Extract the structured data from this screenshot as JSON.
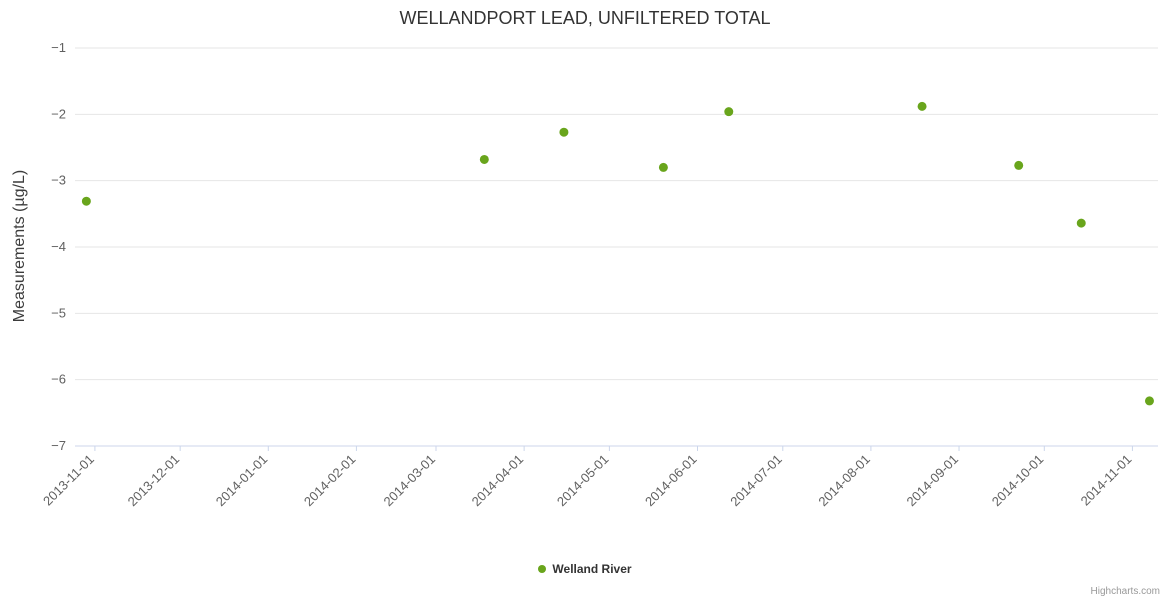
{
  "chart": {
    "title": "WELLANDPORT LEAD, UNFILTERED TOTAL",
    "credits": "Highcharts.com",
    "colors": {
      "series_green": "#69a51c",
      "gridline": "#e6e6e6",
      "axis_line": "#ccd6eb",
      "tick_label": "#606060",
      "title_text": "#333333"
    },
    "y_axis": {
      "title": "Measurements (µg/L)",
      "tick_labels": [
        "−1",
        "−2",
        "−3",
        "−4",
        "−5",
        "−6",
        "−7"
      ]
    },
    "x_axis": {
      "tick_labels": [
        "2013-11-01",
        "2013-12-01",
        "2014-01-01",
        "2014-02-01",
        "2014-03-01",
        "2014-04-01",
        "2014-05-01",
        "2014-06-01",
        "2014-07-01",
        "2014-08-01",
        "2014-09-01",
        "2014-10-01",
        "2014-11-01"
      ]
    },
    "legend": {
      "series_label": "Welland River"
    }
  },
  "chart_data": {
    "type": "scatter",
    "title": "WELLANDPORT LEAD, UNFILTERED TOTAL",
    "xlabel": "",
    "ylabel": "Measurements (µg/L)",
    "ylim": [
      -7,
      -1
    ],
    "y_ticks": [
      -1,
      -2,
      -3,
      -4,
      -5,
      -6,
      -7
    ],
    "x_range": [
      "2013-10-25",
      "2014-11-10"
    ],
    "x_ticks": [
      "2013-11-01",
      "2013-12-01",
      "2014-01-01",
      "2014-02-01",
      "2014-03-01",
      "2014-04-01",
      "2014-05-01",
      "2014-06-01",
      "2014-07-01",
      "2014-08-01",
      "2014-09-01",
      "2014-10-01",
      "2014-11-01"
    ],
    "grid": true,
    "legend_position": "bottom",
    "series": [
      {
        "name": "Welland River",
        "color": "#69a51c",
        "points": [
          {
            "date": "2013-10-29",
            "value": -3.31
          },
          {
            "date": "2014-03-18",
            "value": -2.68
          },
          {
            "date": "2014-04-15",
            "value": -2.27
          },
          {
            "date": "2014-05-20",
            "value": -2.8
          },
          {
            "date": "2014-06-12",
            "value": -1.96
          },
          {
            "date": "2014-08-19",
            "value": -1.88
          },
          {
            "date": "2014-09-22",
            "value": -2.77
          },
          {
            "date": "2014-10-14",
            "value": -3.64
          },
          {
            "date": "2014-11-07",
            "value": -6.32
          }
        ]
      }
    ]
  }
}
